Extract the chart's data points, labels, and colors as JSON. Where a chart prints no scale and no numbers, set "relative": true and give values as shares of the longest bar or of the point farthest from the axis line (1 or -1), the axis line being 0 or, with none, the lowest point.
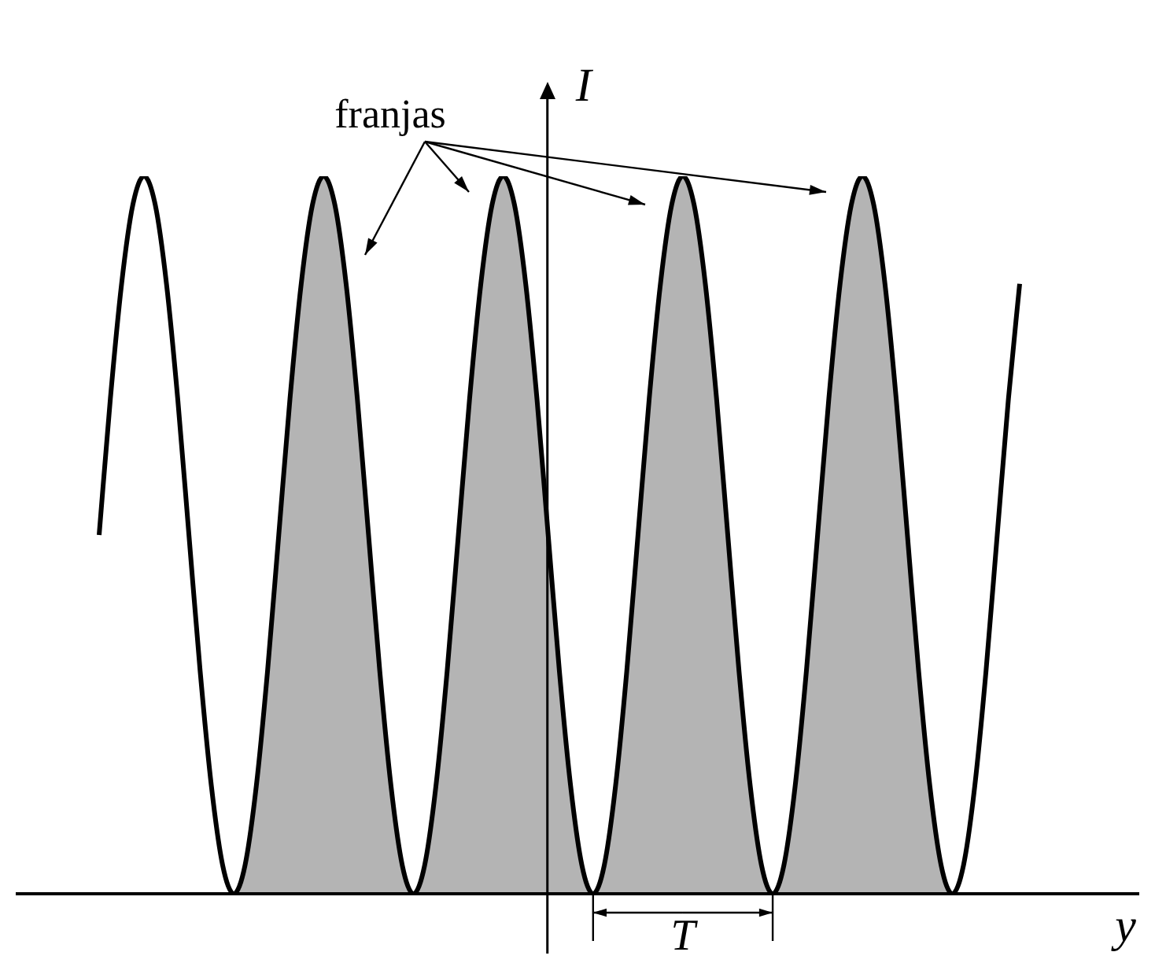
{
  "chart_data": {
    "type": "line",
    "relative": true,
    "xlabel": "y",
    "ylabel": "I",
    "annotations": [
      "franjas",
      "T"
    ],
    "categories": [
      null,
      null,
      null,
      null,
      null,
      null,
      null,
      null,
      null,
      null,
      null,
      null,
      null,
      null,
      null,
      null,
      null,
      null,
      null,
      null,
      null,
      null,
      null,
      null,
      null,
      null,
      null,
      null,
      null,
      null,
      null,
      null,
      null,
      null,
      null,
      null,
      null,
      null,
      null,
      null,
      null,
      null,
      null,
      null,
      null,
      null,
      null,
      null,
      null,
      null,
      null,
      null,
      null,
      null,
      null,
      null,
      null,
      null,
      null,
      null,
      null,
      null,
      null,
      null,
      null,
      null,
      null,
      null,
      null,
      null,
      null,
      null,
      null,
      null,
      null,
      null,
      null,
      null,
      null,
      null,
      null,
      null,
      null
    ],
    "series": [
      {
        "type": "line",
        "color": "#000000",
        "values": [
          0.5,
          0.69,
          0.85,
          0.96,
          1,
          0.96,
          0.85,
          0.69,
          0.5,
          0.31,
          0.15,
          0.04,
          0,
          0.04,
          0.15,
          0.31,
          0.5,
          0.69,
          0.85,
          0.96,
          1,
          0.96,
          0.85,
          0.69,
          0.5,
          0.31,
          0.15,
          0.04,
          0,
          0.04,
          0.15,
          0.31,
          0.5,
          0.69,
          0.85,
          0.96,
          1,
          0.96,
          0.85,
          0.69,
          0.5,
          0.31,
          0.15,
          0.04,
          0,
          0.04,
          0.15,
          0.31,
          0.5,
          0.69,
          0.85,
          0.96,
          1,
          0.96,
          0.85,
          0.69,
          0.5,
          0.31,
          0.15,
          0.04,
          0,
          0.04,
          0.15,
          0.31,
          0.5,
          0.69,
          0.85,
          0.96,
          1,
          0.96,
          0.85,
          0.69,
          0.5,
          0.31,
          0.15,
          0.04,
          0,
          0.04,
          0.15,
          0.31,
          0.5,
          0.69,
          0.85
        ]
      },
      {
        "type": "area",
        "color": "#b4b4b4",
        "values": [
          null,
          null,
          null,
          null,
          null,
          null,
          null,
          null,
          null,
          null,
          null,
          null,
          0,
          0.04,
          0.15,
          0.31,
          0.5,
          0.69,
          0.85,
          0.96,
          1,
          0.96,
          0.85,
          0.69,
          0.5,
          0.31,
          0.15,
          0.04,
          0,
          0.04,
          0.15,
          0.31,
          0.5,
          0.69,
          0.85,
          0.96,
          1,
          0.96,
          0.85,
          0.69,
          0.5,
          0.31,
          0.15,
          0.04,
          0,
          0.04,
          0.15,
          0.31,
          0.5,
          0.69,
          0.85,
          0.96,
          1,
          0.96,
          0.85,
          0.69,
          0.5,
          0.31,
          0.15,
          0.04,
          0,
          0.04,
          0.15,
          0.31,
          0.5,
          0.69,
          0.85,
          0.96,
          1,
          0.96,
          0.85,
          0.69,
          0.5,
          0.31,
          0.15,
          0.04,
          0,
          null,
          null,
          null,
          null,
          null,
          null
        ]
      }
    ]
  }
}
